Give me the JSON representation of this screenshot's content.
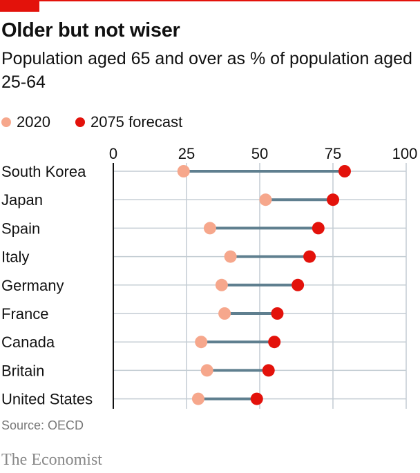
{
  "title": "Older but not wiser",
  "subtitle": "Population aged 65 and over as % of population aged 25-64",
  "source": "Source: OECD",
  "brand": "The Economist",
  "colors": {
    "accent": "#e3120b",
    "series_2020": "#f6a78c",
    "series_2075": "#e3120b",
    "connector": "#5f7f8f",
    "grid": "#c3ccd3"
  },
  "chart_data": {
    "type": "dumbbell",
    "categories": [
      "South Korea",
      "Japan",
      "Spain",
      "Italy",
      "Germany",
      "France",
      "Canada",
      "Britain",
      "United States"
    ],
    "series": [
      {
        "name": "2020",
        "values": [
          24,
          52,
          33,
          40,
          37,
          38,
          30,
          32,
          29
        ]
      },
      {
        "name": "2075 forecast",
        "values": [
          79,
          75,
          70,
          67,
          63,
          56,
          55,
          53,
          49
        ]
      }
    ],
    "xlim": [
      0,
      100
    ],
    "xticks": [
      0,
      25,
      50,
      75,
      100
    ],
    "tick_labels": [
      "0",
      "25",
      "50",
      "75",
      "100"
    ],
    "grid": true,
    "legend_position": "top-left"
  }
}
